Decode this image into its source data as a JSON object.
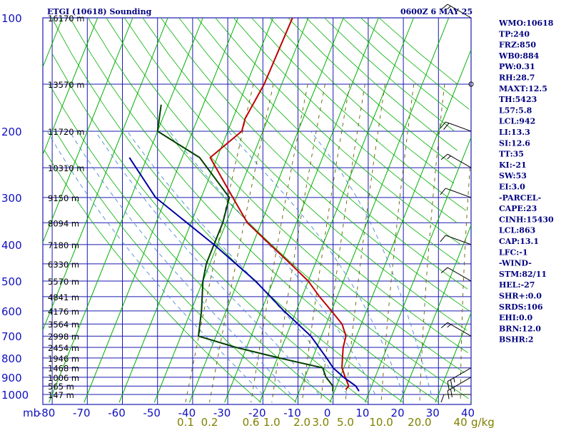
{
  "header": {
    "title": "ETGI (10618) Sounding",
    "time": "0600Z  6 MAY 25"
  },
  "colors": {
    "grid": "#1a1ab0",
    "dry_adiabat": "#00b000",
    "moist_adiabat": "#4a8ad0",
    "mixing_ratio": "#606000",
    "temperature": "#c00000",
    "dewpoint": "#004000",
    "parcel": "#0000a0",
    "mixing_label": "#808000"
  },
  "chart_data": {
    "type": "skew-t",
    "pressure_axis": {
      "unit": "mb",
      "ticks": [
        "100",
        "200",
        "300",
        "400",
        "500",
        "600",
        "700",
        "800",
        "900",
        "1000"
      ],
      "values": [
        100,
        200,
        300,
        400,
        500,
        600,
        700,
        800,
        900,
        1000
      ],
      "range": [
        100,
        1050
      ],
      "scale": "log"
    },
    "height_labels": [
      {
        "p": 100,
        "text": "16170 m"
      },
      {
        "p": 150,
        "text": "13570 m"
      },
      {
        "p": 200,
        "text": "11720 m"
      },
      {
        "p": 250,
        "text": "10310 m"
      },
      {
        "p": 300,
        "text": "9150 m"
      },
      {
        "p": 350,
        "text": "8094 m"
      },
      {
        "p": 400,
        "text": "7180 m"
      },
      {
        "p": 450,
        "text": "6330 m"
      },
      {
        "p": 500,
        "text": "5570 m"
      },
      {
        "p": 550,
        "text": "4841 m"
      },
      {
        "p": 600,
        "text": "4176 m"
      },
      {
        "p": 650,
        "text": "3564 m"
      },
      {
        "p": 700,
        "text": "2998 m"
      },
      {
        "p": 750,
        "text": "2454 m"
      },
      {
        "p": 800,
        "text": "1946 m"
      },
      {
        "p": 850,
        "text": "1468 m"
      },
      {
        "p": 900,
        "text": "1006 m"
      },
      {
        "p": 950,
        "text": "565 m"
      },
      {
        "p": 1000,
        "text": "147 m"
      }
    ],
    "temperature_axis": {
      "unit": "°C",
      "ticks": [
        "-80",
        "-70",
        "-60",
        "-50",
        "-40",
        "-30",
        "-20",
        "-10",
        "0",
        "10",
        "20",
        "30",
        "40"
      ],
      "values": [
        -80,
        -70,
        -60,
        -50,
        -40,
        -30,
        -20,
        -10,
        0,
        10,
        20,
        30,
        40
      ]
    },
    "mixing_ratio_axis": {
      "unit": "g/kg",
      "ticks": [
        "0.1",
        "0.2",
        "0.6",
        "1.0",
        "2.0",
        "3.0",
        "5.0",
        "10.0",
        "20.0",
        "40"
      ],
      "values": [
        0.1,
        0.2,
        0.6,
        1.0,
        2.0,
        3.0,
        5.0,
        10.0,
        20.0,
        40
      ]
    },
    "series": [
      {
        "key": "temperature",
        "points": [
          [
            100,
            -54.5
          ],
          [
            150,
            -55
          ],
          [
            185,
            -56.5
          ],
          [
            200,
            -56
          ],
          [
            235,
            -62
          ],
          [
            300,
            -51
          ],
          [
            350,
            -44
          ],
          [
            400,
            -35
          ],
          [
            450,
            -27
          ],
          [
            500,
            -20
          ],
          [
            550,
            -15
          ],
          [
            600,
            -10
          ],
          [
            650,
            -5.5
          ],
          [
            700,
            -3
          ],
          [
            750,
            -2.5
          ],
          [
            800,
            -1.5
          ],
          [
            850,
            -0.5
          ],
          [
            900,
            1.5
          ],
          [
            950,
            3.5
          ],
          [
            970,
            3
          ]
        ]
      },
      {
        "key": "dewpoint",
        "points": [
          [
            170,
            -82
          ],
          [
            200,
            -80
          ],
          [
            235,
            -65
          ],
          [
            300,
            -52
          ],
          [
            350,
            -51
          ],
          [
            400,
            -51
          ],
          [
            450,
            -51
          ],
          [
            500,
            -50
          ],
          [
            600,
            -47
          ],
          [
            700,
            -45
          ],
          [
            750,
            -33
          ],
          [
            800,
            -19.5
          ],
          [
            850,
            -6
          ],
          [
            900,
            -4
          ],
          [
            950,
            -1
          ],
          [
            980,
            -0.5
          ]
        ]
      },
      {
        "key": "parcel",
        "points": [
          [
            235,
            -85
          ],
          [
            300,
            -73
          ],
          [
            400,
            -51
          ],
          [
            500,
            -35
          ],
          [
            600,
            -23.5
          ],
          [
            700,
            -13
          ],
          [
            800,
            -6
          ],
          [
            850,
            -3
          ],
          [
            900,
            1
          ],
          [
            950,
            5.5
          ],
          [
            980,
            7
          ]
        ]
      }
    ],
    "winds": [
      {
        "p": 100,
        "dir": 300,
        "kt": 15
      },
      {
        "p": 150,
        "dir": 0,
        "kt": 0
      },
      {
        "p": 200,
        "dir": 290,
        "kt": 20
      },
      {
        "p": 250,
        "dir": 300,
        "kt": 15
      },
      {
        "p": 300,
        "dir": 290,
        "kt": 10
      },
      {
        "p": 400,
        "dir": 290,
        "kt": 10
      },
      {
        "p": 500,
        "dir": 300,
        "kt": 10
      },
      {
        "p": 700,
        "dir": 300,
        "kt": 15
      },
      {
        "p": 850,
        "dir": 240,
        "kt": 25
      },
      {
        "p": 900,
        "dir": 240,
        "kt": 25
      },
      {
        "p": 1000,
        "dir": 270,
        "kt": 10
      }
    ]
  },
  "indices": [
    "WMO:10618",
    "TP:240",
    "FRZ:850",
    "WB0:884",
    "PW:0.31",
    "RH:28.7",
    "MAXT:12.5",
    "TH:5423",
    "L57:5.8",
    "LCL:942",
    "LI:13.3",
    "SI:12.6",
    "TT:35",
    "KI:-21",
    "SW:53",
    "EI:3.0",
    "-PARCEL-",
    "CAPE:23",
    "CINH:15430",
    "LCL:863",
    "CAP:13.1",
    "LFC:-1",
    "-WIND-",
    "STM:82/11",
    "HEL:-27",
    "SHR+:0.0",
    "SRDS:106",
    "EHI:0.0",
    "BRN:12.0",
    "BSHR:2"
  ]
}
